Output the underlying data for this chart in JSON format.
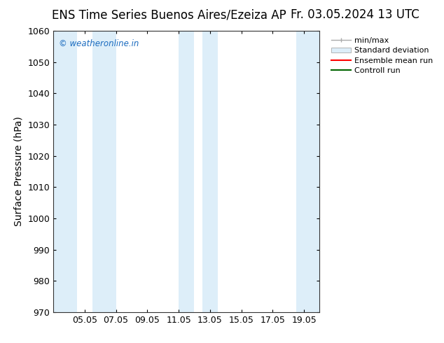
{
  "title_left": "ENS Time Series Buenos Aires/Ezeiza AP",
  "title_right": "Fr. 03.05.2024 13 UTC",
  "ylabel": "Surface Pressure (hPa)",
  "ylim": [
    970,
    1060
  ],
  "yticks": [
    970,
    980,
    990,
    1000,
    1010,
    1020,
    1030,
    1040,
    1050,
    1060
  ],
  "xtick_labels": [
    "05.05",
    "07.05",
    "09.05",
    "11.05",
    "13.05",
    "15.05",
    "17.05",
    "19.05"
  ],
  "xtick_positions": [
    2,
    4,
    6,
    8,
    10,
    12,
    14,
    16
  ],
  "shaded_bands": [
    {
      "x_start": 0.0,
      "x_end": 1.5,
      "color": "#ddeef9"
    },
    {
      "x_start": 2.5,
      "x_end": 4.0,
      "color": "#ddeef9"
    },
    {
      "x_start": 8.0,
      "x_end": 9.0,
      "color": "#ddeef9"
    },
    {
      "x_start": 9.5,
      "x_end": 10.5,
      "color": "#ddeef9"
    },
    {
      "x_start": 15.5,
      "x_end": 17.0,
      "color": "#ddeef9"
    }
  ],
  "watermark": "© weatheronline.in",
  "watermark_color": "#1a6bbf",
  "bg_color": "#ffffff",
  "plot_bg_color": "#ffffff",
  "legend_entries": [
    "min/max",
    "Standard deviation",
    "Ensemble mean run",
    "Controll run"
  ],
  "xmin": 0,
  "xmax": 17,
  "title_fontsize": 12,
  "tick_fontsize": 9,
  "ylabel_fontsize": 10,
  "legend_fontsize": 8
}
